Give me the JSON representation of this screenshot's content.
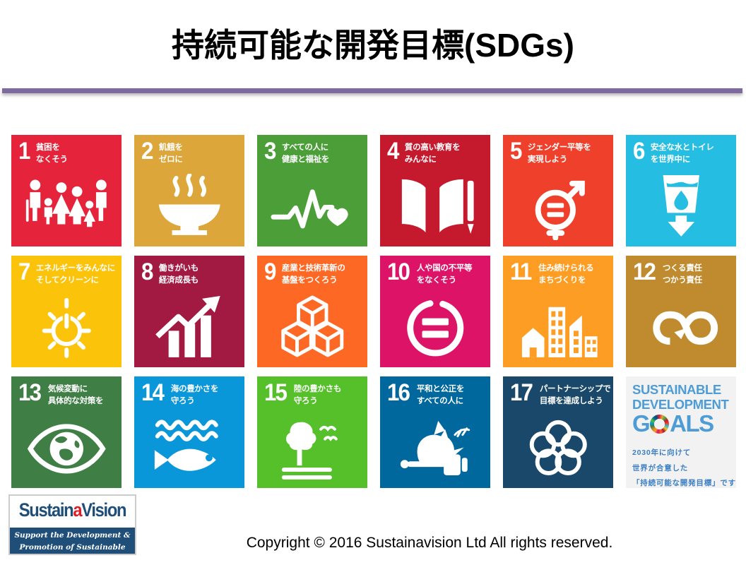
{
  "title": "持続可能な開発目標(SDGs)",
  "accent_colors": {
    "divider_purple": "#7D6BA0",
    "sdg_logo_blue": "#4E9CD5",
    "sdg_caption_blue": "#3B7FC4",
    "vendor_navy": "#1F4E79",
    "vendor_red": "#E31B23"
  },
  "sdg_goals": [
    {
      "number": "1",
      "label_lines": [
        "貧困を",
        "なくそう"
      ],
      "color": "#E5243B",
      "icon": "family-icon"
    },
    {
      "number": "2",
      "label_lines": [
        "飢餓を",
        "ゼロに"
      ],
      "color": "#DDA63A",
      "icon": "steaming-bowl-icon"
    },
    {
      "number": "3",
      "label_lines": [
        "すべての人に",
        "健康と福祉を"
      ],
      "color": "#4C9F38",
      "icon": "heartbeat-icon"
    },
    {
      "number": "4",
      "label_lines": [
        "質の高い教育を",
        "みんなに"
      ],
      "color": "#C5192D",
      "icon": "open-book-icon"
    },
    {
      "number": "5",
      "label_lines": [
        "ジェンダー平等を",
        "実現しよう"
      ],
      "color": "#EF402B",
      "icon": "gender-equality-icon"
    },
    {
      "number": "6",
      "label_lines": [
        "安全な水とトイレ",
        "を世界中に"
      ],
      "color": "#26BDE2",
      "icon": "water-glass-icon"
    },
    {
      "number": "7",
      "label_lines": [
        "エネルギーをみんなに",
        "そしてクリーンに"
      ],
      "color": "#FCC30B",
      "icon": "sun-power-icon"
    },
    {
      "number": "8",
      "label_lines": [
        "働きがいも",
        "経済成長も"
      ],
      "color": "#A21942",
      "icon": "growth-chart-icon"
    },
    {
      "number": "9",
      "label_lines": [
        "産業と技術革新の",
        "基盤をつくろう"
      ],
      "color": "#FD6925",
      "icon": "building-blocks-icon"
    },
    {
      "number": "10",
      "label_lines": [
        "人や国の不平等",
        "をなくそう"
      ],
      "color": "#DD1367",
      "icon": "equality-circle-icon"
    },
    {
      "number": "11",
      "label_lines": [
        "住み続けられる",
        "まちづくりを"
      ],
      "color": "#FD9D24",
      "icon": "city-skyline-icon"
    },
    {
      "number": "12",
      "label_lines": [
        "つくる責任",
        "つかう責任"
      ],
      "color": "#BF8B2E",
      "icon": "infinity-loop-icon"
    },
    {
      "number": "13",
      "label_lines": [
        "気候変動に",
        "具体的な対策を"
      ],
      "color": "#3F7E44",
      "icon": "eye-globe-icon"
    },
    {
      "number": "14",
      "label_lines": [
        "海の豊かさを",
        "守ろう"
      ],
      "color": "#0A97D9",
      "icon": "fish-waves-icon"
    },
    {
      "number": "15",
      "label_lines": [
        "陸の豊かさも",
        "守ろう"
      ],
      "color": "#56C02B",
      "icon": "tree-birds-icon"
    },
    {
      "number": "16",
      "label_lines": [
        "平和と公正を",
        "すべての人に"
      ],
      "color": "#00689D",
      "icon": "dove-gavel-icon"
    },
    {
      "number": "17",
      "label_lines": [
        "パートナーシップで",
        "目標を達成しよう"
      ],
      "color": "#19486A",
      "icon": "linked-rings-icon"
    }
  ],
  "sdg_logo_tile": {
    "line1": "SUSTAINABLE",
    "line2": "DEVELOPMENT",
    "goals_prefix": "G",
    "goals_suffix": "ALS",
    "caption_lines": [
      "2030年に向けて",
      "世界が合意した",
      "「持続可能な開発目標」です"
    ],
    "background": "#F2F2F3"
  },
  "vendor_logo": {
    "brand_prefix": "Sustain",
    "brand_accent": "a",
    "brand_suffix": "Vision",
    "tagline_line1": "Support the Development &",
    "tagline_line2": "Promotion of Sustainable Thinking"
  },
  "footer": {
    "copyright": "Copyright © 2016 Sustainavision Ltd All rights reserved."
  }
}
